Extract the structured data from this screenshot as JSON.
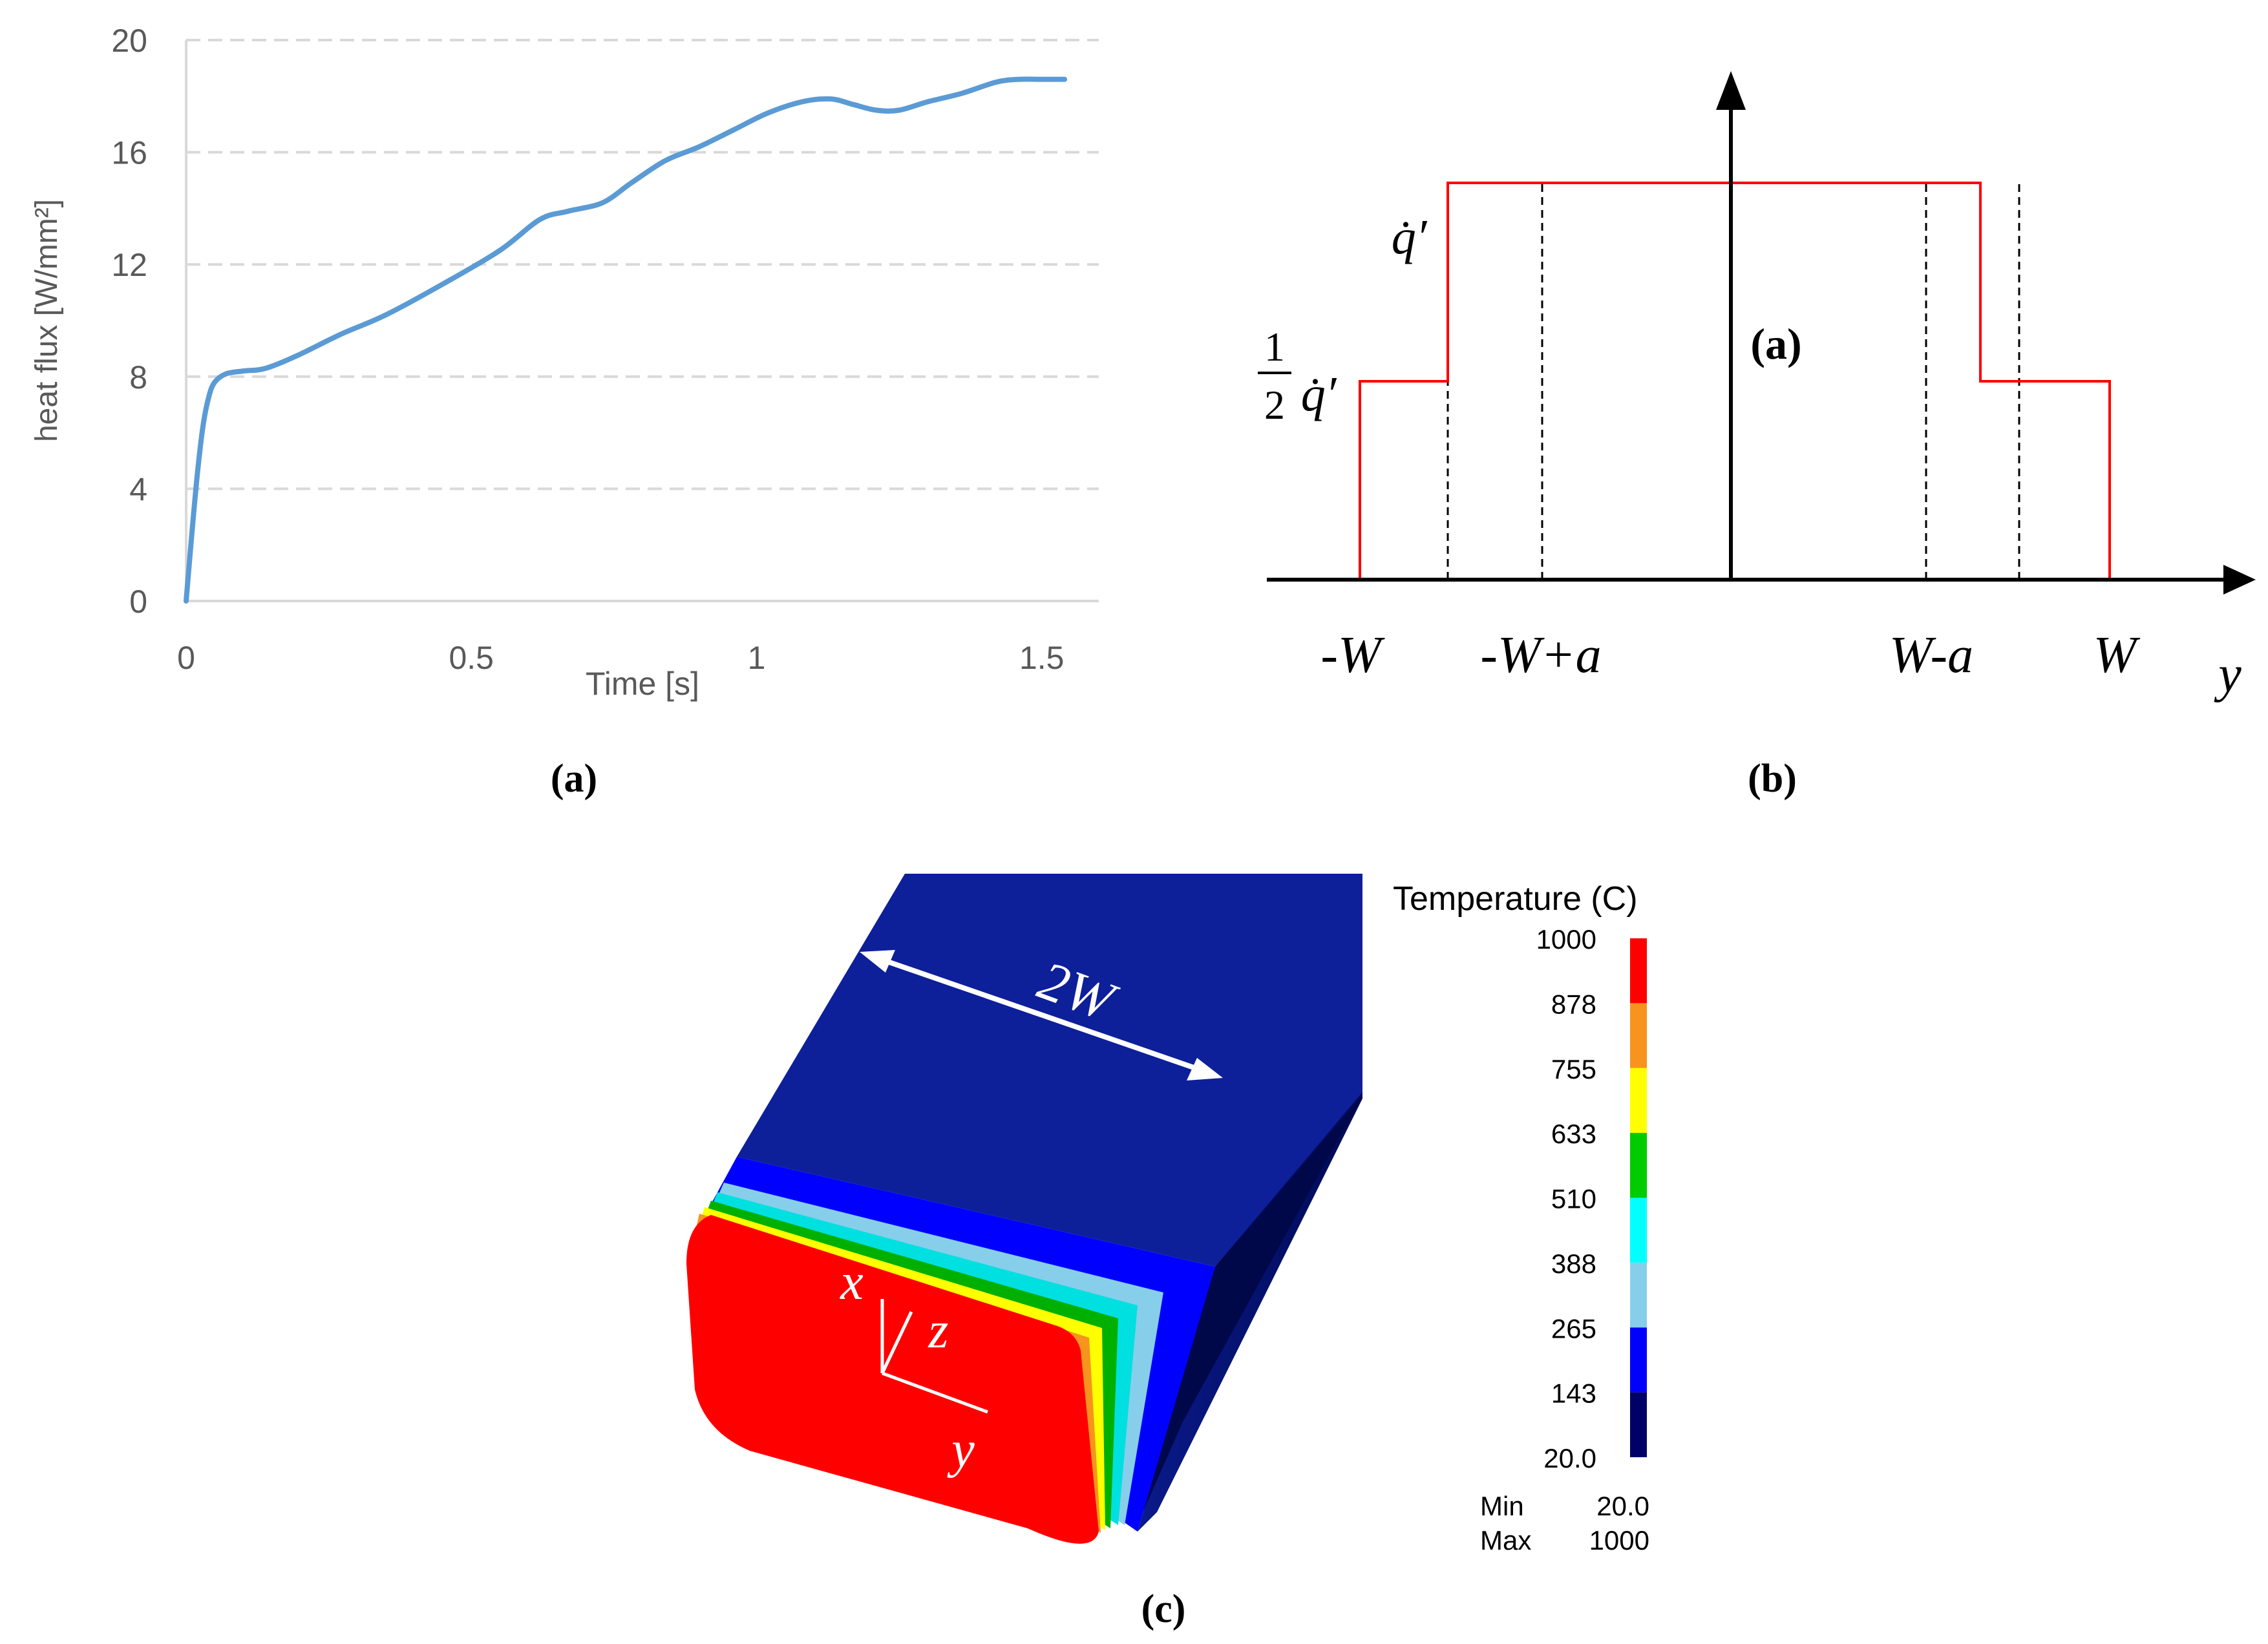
{
  "chart_data": [
    {
      "type": "line",
      "panel_label": "(a)",
      "xlabel": "Time [s]",
      "ylabel": "heat flux [W/mm²]",
      "xlim": [
        0,
        1.6
      ],
      "ylim": [
        0,
        20
      ],
      "x_ticks": [
        "0",
        "0.5",
        "1",
        "1.5"
      ],
      "y_ticks": [
        "0",
        "4",
        "8",
        "12",
        "16",
        "20"
      ],
      "grid": "horizontal dashed",
      "series": [
        {
          "color": "#5b9bd5",
          "x": [
            0,
            0.01,
            0.02,
            0.03,
            0.04,
            0.05,
            0.07,
            0.1,
            0.14,
            0.2,
            0.27,
            0.35,
            0.45,
            0.55,
            0.62,
            0.67,
            0.73,
            0.78,
            0.84,
            0.9,
            0.96,
            1.02,
            1.08,
            1.13,
            1.17,
            1.21,
            1.25,
            1.3,
            1.36,
            1.42,
            1.46,
            1.5,
            1.54
          ],
          "y": [
            0,
            2.4,
            4.6,
            6.3,
            7.3,
            7.8,
            8.1,
            8.2,
            8.3,
            8.8,
            9.5,
            10.2,
            11.3,
            12.5,
            13.6,
            13.9,
            14.2,
            14.9,
            15.7,
            16.2,
            16.8,
            17.4,
            17.8,
            17.9,
            17.7,
            17.5,
            17.5,
            17.8,
            18.1,
            18.5,
            18.6,
            18.6,
            18.6
          ]
        }
      ]
    },
    {
      "type": "line",
      "panel_label": "(b)",
      "inner_label": "(a)",
      "xlabel": "y",
      "x_tick_labels": [
        "-W",
        "-W+a",
        "W-a",
        "W"
      ],
      "q_label": "q̇′",
      "half_label_num": "1",
      "half_label_den": "2",
      "half_label_q": "q̇′",
      "profile_color": "#ff0000",
      "profile": {
        "y": [
          "-W",
          "-W",
          "-W+a'",
          "-W+a'",
          "W-a'",
          "W-a'",
          "W",
          "W"
        ],
        "q": [
          0,
          0.5,
          0.5,
          1,
          1,
          0.5,
          0.5,
          0
        ]
      }
    },
    {
      "type": "heatmap",
      "panel_label": "(c)",
      "width_label": "2W",
      "axes_labels": [
        "x",
        "z",
        "y"
      ],
      "legend_title": "Temperature (C)",
      "legend_values": [
        "1000",
        "878",
        "755",
        "633",
        "510",
        "388",
        "265",
        "143",
        "20.0"
      ],
      "legend_colors": [
        "#ff0000",
        "#f7941d",
        "#ffff00",
        "#00cc00",
        "#00ffff",
        "#87ceeb",
        "#0000ff",
        "#000066"
      ],
      "min_label": "Min",
      "min_value": "20.0",
      "max_label": "Max",
      "max_value": "1000"
    }
  ]
}
